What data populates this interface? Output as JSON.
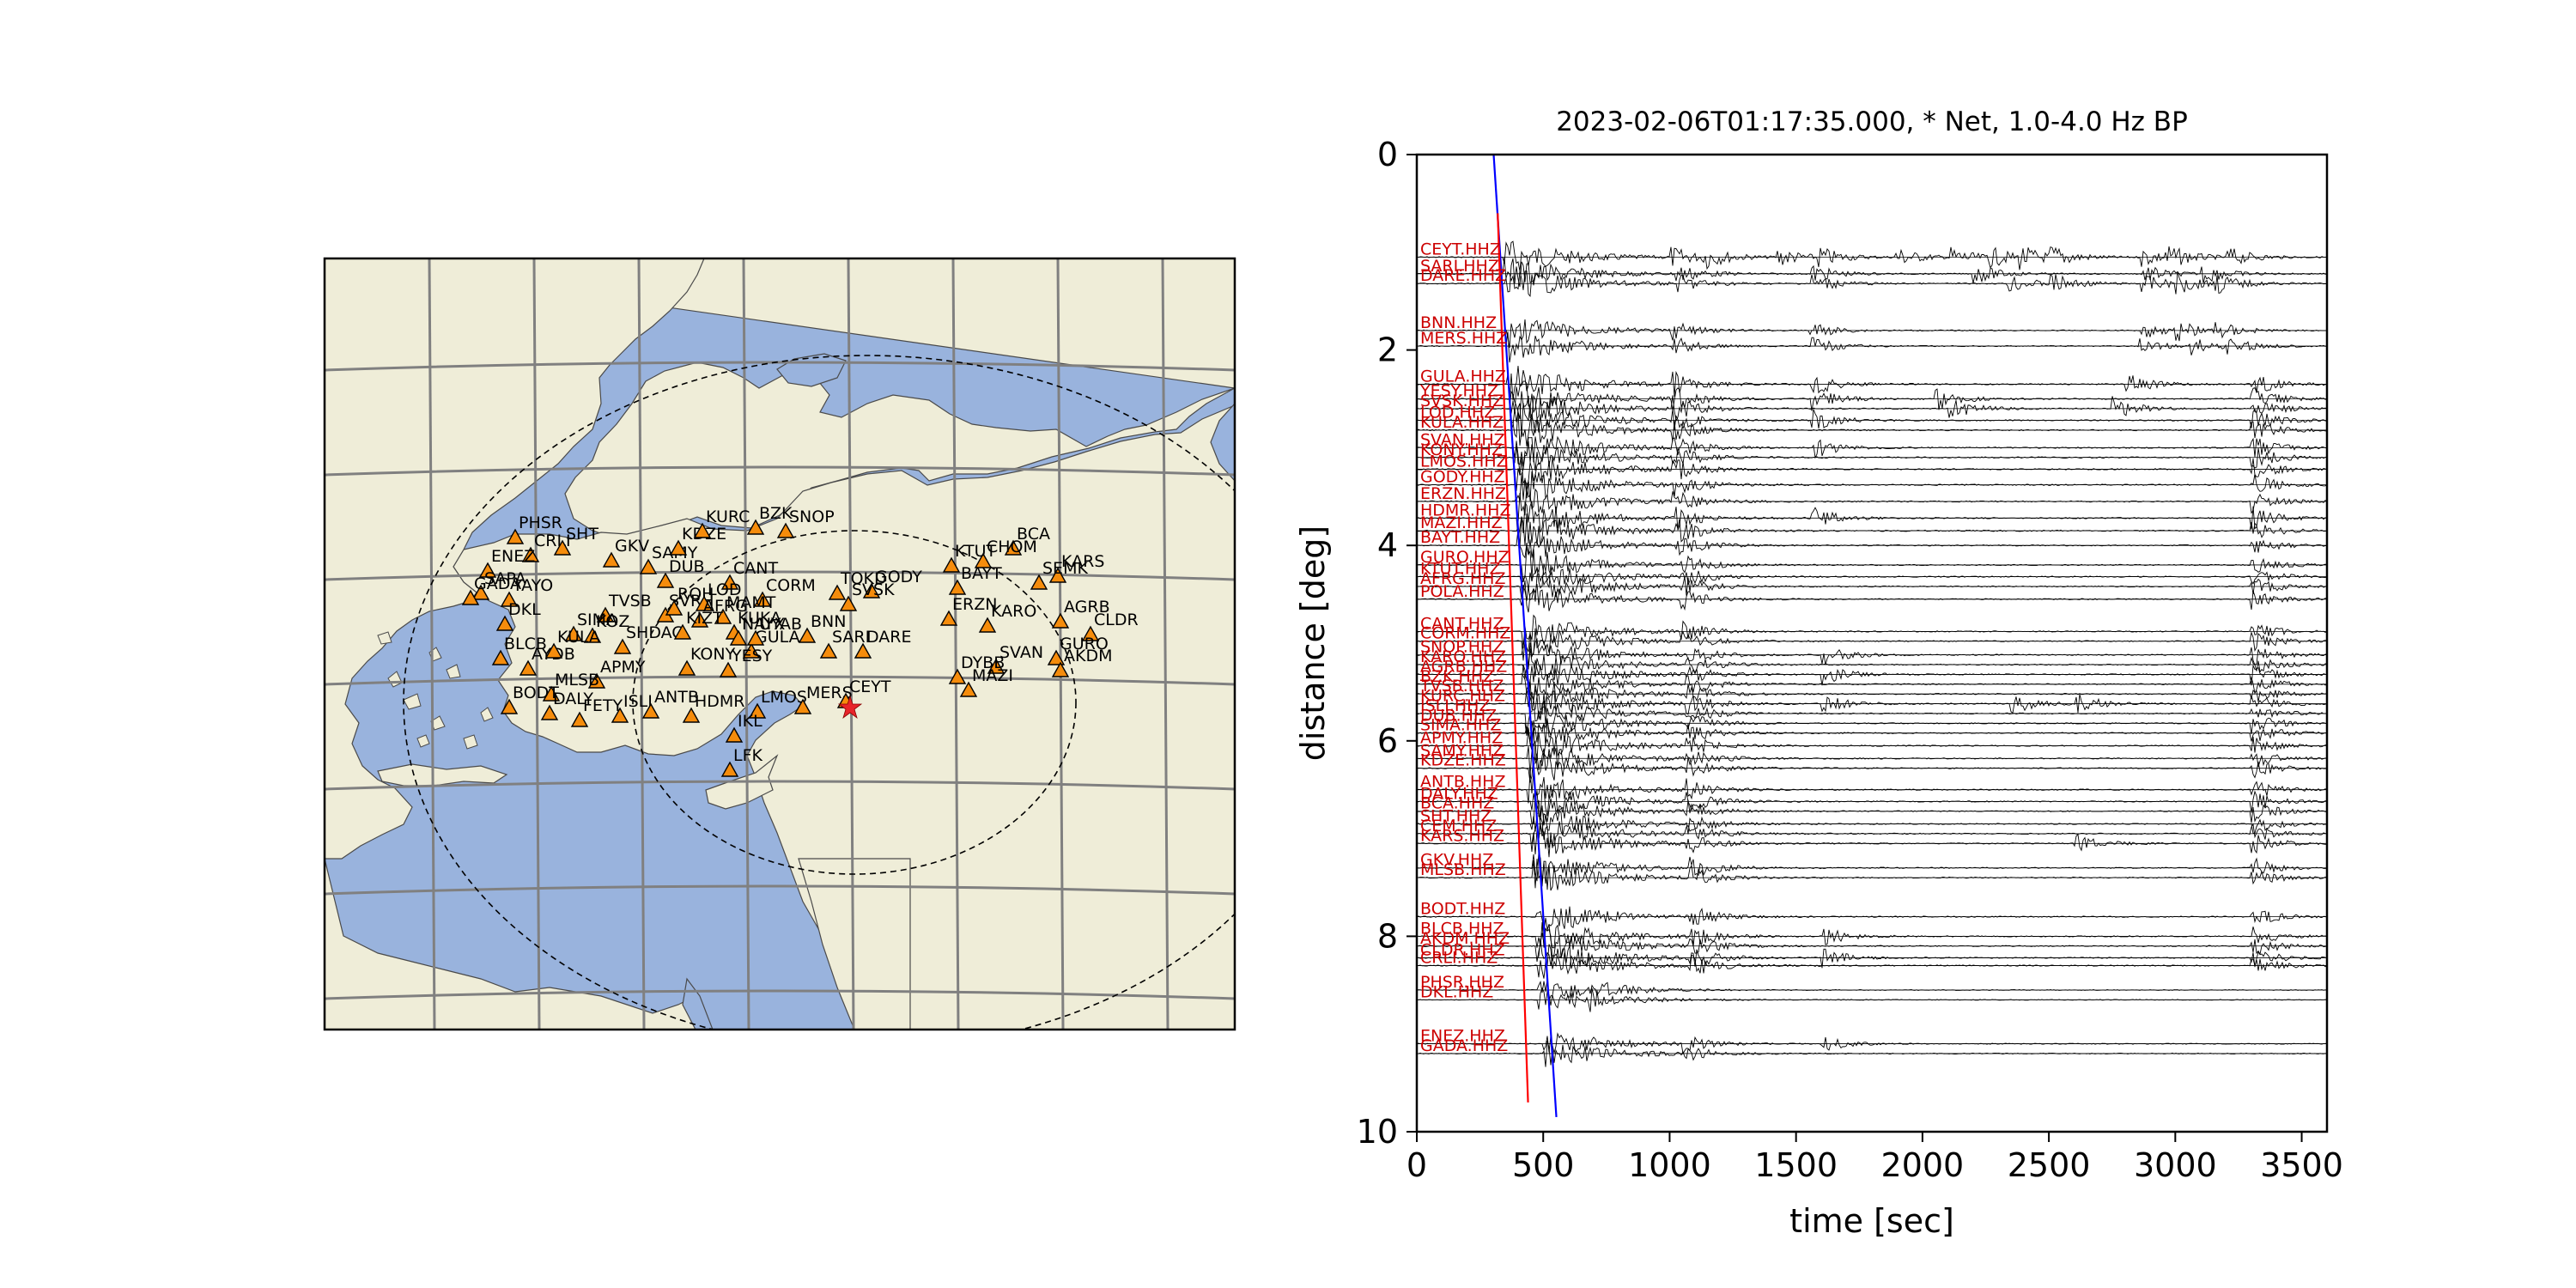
{
  "chart_data": [
    {
      "type": "map",
      "projection": "lambert-conformal",
      "colors": {
        "land": "#efedd8",
        "water": "#99b3dd",
        "grid": "#808080",
        "station_fill": "#f58c0c",
        "station_edge": "#000000",
        "epicenter": "#e8242a"
      },
      "epicenter": {
        "symbol": "star",
        "lon": 37.02,
        "lat": 37.17
      },
      "range_circles": [
        "dashed",
        "dashed"
      ],
      "stations": [
        "PHSR",
        "CRLI",
        "ENEZ",
        "SHT",
        "GKV",
        "SAMY",
        "KDZE",
        "KURC",
        "BZK",
        "SNOP",
        "BCA",
        "CHOM",
        "KTUT",
        "KARS",
        "SEMK",
        "BAYT",
        "TOKD",
        "GODY",
        "SVSK",
        "CORM",
        "CANT",
        "DUB",
        "YAYO",
        "DKL",
        "TVSB",
        "SVRH",
        "ROH",
        "LOD",
        "MAMT",
        "AFRG",
        "KUKA",
        "NAYX",
        "SIMA",
        "KOZ",
        "SHDAG",
        "KIZT",
        "GULA",
        "BNN",
        "SARI",
        "DARE",
        "ERZN",
        "KARO",
        "AGRB",
        "CLDR",
        "GURO",
        "AKDM",
        "SVAN",
        "DYBB",
        "MAZI",
        "BLCB",
        "AYDB",
        "KULA",
        "APMY",
        "MLSB",
        "BODT",
        "DALY",
        "FETY",
        "ISLI",
        "ANTB",
        "HDMR",
        "LMOS",
        "MERS",
        "CEYT",
        "IKL",
        "LFK",
        "KONY",
        "YESY",
        "SAPA",
        "GADA",
        "UYAB"
      ]
    },
    {
      "type": "line",
      "title": "2023-02-06T01:17:35.000, * Net, 1.0-4.0 Hz BP",
      "xlabel": "time [sec]",
      "ylabel": "distance [deg]",
      "xlim": [
        0,
        3600
      ],
      "ylim": [
        10,
        0
      ],
      "xticks": [
        "0",
        "500",
        "1000",
        "1500",
        "2000",
        "2500",
        "3000",
        "3500"
      ],
      "yticks": [
        "0",
        "2",
        "4",
        "6",
        "8",
        "10"
      ],
      "trace_color": "#000000",
      "label_color": "#cc0000",
      "phase_lines": [
        {
          "color": "#0000ff",
          "points": [
            [
              304,
              0
            ],
            [
              552,
              9.85
            ]
          ]
        },
        {
          "color": "#ff0000",
          "points": [
            [
              320,
              0.6
            ],
            [
              440,
              9.7
            ]
          ]
        }
      ],
      "traces": [
        {
          "label": "CEYT.HHZ",
          "distance": 1.05,
          "amplitude": 0.9,
          "bursts": [
            340,
            1000,
            1130,
            1420,
            1580,
            1890,
            2100,
            2250,
            2380,
            2500,
            2860,
            2960,
            3200
          ]
        },
        {
          "label": "SARI.HHZ",
          "distance": 1.22,
          "amplitude": 0.9,
          "bursts": [
            340,
            1020,
            1550,
            2200,
            2860,
            3100
          ]
        },
        {
          "label": "DARE.HHZ",
          "distance": 1.32,
          "amplitude": 0.9,
          "bursts": [
            350,
            1020,
            1560,
            2330,
            2500,
            2860,
            3000,
            3150
          ]
        },
        {
          "label": "BNN.HHZ",
          "distance": 1.8,
          "amplitude": 0.8,
          "bursts": [
            360,
            1000,
            1550,
            2860,
            3000,
            3150
          ]
        },
        {
          "label": "MERS.HHZ",
          "distance": 1.96,
          "amplitude": 0.8,
          "bursts": [
            360,
            1010,
            1560,
            2850,
            3050,
            3200
          ]
        },
        {
          "label": "GULA.HHZ",
          "distance": 2.35,
          "amplitude": 1.0,
          "bursts": [
            360,
            1010,
            1560,
            2800,
            3300
          ]
        },
        {
          "label": "YESY.HHZ",
          "distance": 2.5,
          "amplitude": 1.0,
          "bursts": [
            370,
            1010,
            1560,
            2050,
            3300
          ]
        },
        {
          "label": "SVSK.HHZ",
          "distance": 2.6,
          "amplitude": 1.0,
          "bursts": [
            370,
            1010,
            2100,
            2750,
            3300
          ]
        },
        {
          "label": "LOD.HHZ",
          "distance": 2.72,
          "amplitude": 1.0,
          "bursts": [
            380,
            1010,
            1560,
            3300
          ]
        },
        {
          "label": "KULA.HHZ",
          "distance": 2.82,
          "amplitude": 1.0,
          "bursts": [
            380,
            1010,
            3300
          ]
        },
        {
          "label": "SVAN.HHZ",
          "distance": 3.0,
          "amplitude": 1.0,
          "bursts": [
            380,
            1010,
            1560,
            3300
          ]
        },
        {
          "label": "KONY.HHZ",
          "distance": 3.1,
          "amplitude": 1.0,
          "bursts": [
            380,
            1010,
            3300
          ]
        },
        {
          "label": "LMOS.HHZ",
          "distance": 3.22,
          "amplitude": 1.0,
          "bursts": [
            390,
            1010,
            3300
          ]
        },
        {
          "label": "GODY.HHZ",
          "distance": 3.38,
          "amplitude": 1.0,
          "bursts": [
            390,
            1010,
            3300
          ]
        },
        {
          "label": "ERZN.HHZ",
          "distance": 3.55,
          "amplitude": 1.0,
          "bursts": [
            390,
            1010,
            3300
          ]
        },
        {
          "label": "HDMR.HHZ",
          "distance": 3.72,
          "amplitude": 1.0,
          "bursts": [
            400,
            1020,
            1560,
            3300
          ]
        },
        {
          "label": "MAZI.HHZ",
          "distance": 3.85,
          "amplitude": 1.0,
          "bursts": [
            400,
            1020,
            3300
          ]
        },
        {
          "label": "BAYT.HHZ",
          "distance": 4.0,
          "amplitude": 0.9,
          "bursts": [
            400,
            1020,
            3300
          ]
        },
        {
          "label": "GURO.HHZ",
          "distance": 4.2,
          "amplitude": 0.9,
          "bursts": [
            410,
            1040,
            3300
          ]
        },
        {
          "label": "KTUT.HHZ",
          "distance": 4.32,
          "amplitude": 0.9,
          "bursts": [
            410,
            1040,
            3300
          ]
        },
        {
          "label": "AFRG.HHZ",
          "distance": 4.42,
          "amplitude": 0.9,
          "bursts": [
            410,
            1040,
            3300
          ]
        },
        {
          "label": "POLA.HHZ",
          "distance": 4.55,
          "amplitude": 0.9,
          "bursts": [
            410,
            1040,
            3300
          ]
        },
        {
          "label": "CANT.HHZ",
          "distance": 4.88,
          "amplitude": 0.9,
          "bursts": [
            420,
            1040,
            3300
          ]
        },
        {
          "label": "CORM.HHZ",
          "distance": 4.98,
          "amplitude": 0.9,
          "bursts": [
            420,
            1040,
            3300
          ]
        },
        {
          "label": "SNOP.HHZ",
          "distance": 5.12,
          "amplitude": 0.9,
          "bursts": [
            420,
            1060,
            1600,
            3300
          ]
        },
        {
          "label": "KARO.HHZ",
          "distance": 5.22,
          "amplitude": 0.9,
          "bursts": [
            420,
            1060,
            3300
          ]
        },
        {
          "label": "AGRB.HHZ",
          "distance": 5.32,
          "amplitude": 0.9,
          "bursts": [
            420,
            1060,
            1600,
            3300
          ]
        },
        {
          "label": "BZK.HHZ",
          "distance": 5.42,
          "amplitude": 0.9,
          "bursts": [
            420,
            1060,
            3300
          ]
        },
        {
          "label": "TVSB.HHZ",
          "distance": 5.52,
          "amplitude": 0.9,
          "bursts": [
            430,
            1060,
            3300
          ]
        },
        {
          "label": "KURC.HHZ",
          "distance": 5.62,
          "amplitude": 0.9,
          "bursts": [
            430,
            1060,
            1600,
            2350,
            2600,
            3300
          ]
        },
        {
          "label": "ISLI.HHZ",
          "distance": 5.72,
          "amplitude": 0.9,
          "bursts": [
            430,
            1060,
            3300
          ]
        },
        {
          "label": "DUB.HHZ",
          "distance": 5.82,
          "amplitude": 0.9,
          "bursts": [
            430,
            1060,
            3300
          ]
        },
        {
          "label": "SIMA.HHZ",
          "distance": 5.92,
          "amplitude": 0.9,
          "bursts": [
            430,
            1060,
            3300
          ]
        },
        {
          "label": "APMY.HHZ",
          "distance": 6.05,
          "amplitude": 0.9,
          "bursts": [
            440,
            1060,
            3300
          ]
        },
        {
          "label": "SAMY.HHZ",
          "distance": 6.18,
          "amplitude": 0.9,
          "bursts": [
            440,
            1060,
            3300
          ]
        },
        {
          "label": "KDZE.HHZ",
          "distance": 6.28,
          "amplitude": 0.9,
          "bursts": [
            440,
            1060,
            3300
          ]
        },
        {
          "label": "ANTB.HHZ",
          "distance": 6.5,
          "amplitude": 0.9,
          "bursts": [
            440,
            1060,
            3300
          ]
        },
        {
          "label": "DALY.HHZ",
          "distance": 6.62,
          "amplitude": 0.9,
          "bursts": [
            450,
            1060,
            3300
          ]
        },
        {
          "label": "BCA.HHZ",
          "distance": 6.72,
          "amplitude": 0.9,
          "bursts": [
            450,
            1060,
            3300
          ]
        },
        {
          "label": "SHT.HHZ",
          "distance": 6.85,
          "amplitude": 0.9,
          "bursts": [
            450,
            1060,
            3300
          ]
        },
        {
          "label": "CEM.HHZ",
          "distance": 6.95,
          "amplitude": 0.9,
          "bursts": [
            450,
            1060,
            3300
          ]
        },
        {
          "label": "KARS.HHZ",
          "distance": 7.05,
          "amplitude": 0.9,
          "bursts": [
            460,
            1060,
            2600,
            3300
          ]
        },
        {
          "label": "GKV.HHZ",
          "distance": 7.3,
          "amplitude": 0.9,
          "bursts": [
            460,
            1080,
            3300
          ]
        },
        {
          "label": "MLSB.HHZ",
          "distance": 7.4,
          "amplitude": 0.9,
          "bursts": [
            460,
            1080,
            3300
          ]
        },
        {
          "label": "BODT.HHZ",
          "distance": 7.8,
          "amplitude": 0.9,
          "bursts": [
            470,
            1080,
            3300
          ]
        },
        {
          "label": "BLCB.HHZ",
          "distance": 8.0,
          "amplitude": 0.9,
          "bursts": [
            470,
            1080,
            1600,
            3300
          ]
        },
        {
          "label": "AKDM.HHZ",
          "distance": 8.1,
          "amplitude": 0.9,
          "bursts": [
            470,
            1080,
            3300
          ]
        },
        {
          "label": "CLDR.HHZ",
          "distance": 8.22,
          "amplitude": 0.9,
          "bursts": [
            480,
            1080,
            1600,
            3300
          ]
        },
        {
          "label": "CRLI.HHZ",
          "distance": 8.3,
          "amplitude": 0.9,
          "bursts": [
            480,
            1080,
            3300
          ]
        },
        {
          "label": "PHSR.HHZ",
          "distance": 8.55,
          "amplitude": 0.6,
          "bursts": [
            480,
            680
          ]
        },
        {
          "label": "DKL.HHZ",
          "distance": 8.65,
          "amplitude": 0.6,
          "bursts": [
            480,
            680
          ]
        },
        {
          "label": "ENEZ.HHZ",
          "distance": 9.1,
          "amplitude": 0.7,
          "bursts": [
            500,
            1050,
            1600
          ]
        },
        {
          "label": "GADA.HHZ",
          "distance": 9.2,
          "amplitude": 0.7,
          "bursts": [
            500,
            1050
          ]
        }
      ]
    }
  ]
}
